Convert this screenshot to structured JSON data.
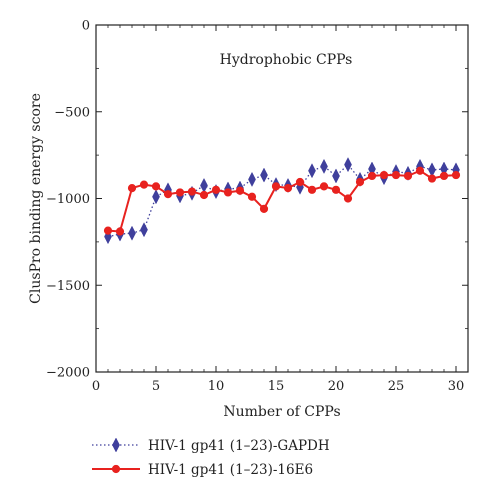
{
  "chart_data": {
    "type": "line",
    "title": "",
    "annotation": "Hydrophobic CPPs",
    "xlabel": "Number of CPPs",
    "ylabel": "ClusPro binding energy score",
    "xlim": [
      0,
      31
    ],
    "ylim": [
      -2000,
      0
    ],
    "xticks": [
      0,
      5,
      10,
      15,
      20,
      25,
      30
    ],
    "yticks": [
      0,
      -500,
      -1000,
      -1500,
      -2000
    ],
    "xtick_labels": [
      "0",
      "5",
      "10",
      "15",
      "20",
      "25",
      "30"
    ],
    "ytick_labels": [
      "0",
      "−500",
      "−1000",
      "−1500",
      "−2000"
    ],
    "grid": false,
    "legend_position": "bottom-left, below plot",
    "series": [
      {
        "name": "HIV-1 gp41 (1–23)-GAPDH",
        "color": "#3f3f9c",
        "line_style": "dotted",
        "marker": "diamond",
        "x": [
          1,
          2,
          3,
          4,
          5,
          6,
          7,
          8,
          9,
          10,
          11,
          12,
          13,
          14,
          15,
          16,
          17,
          18,
          19,
          20,
          21,
          22,
          23,
          24,
          25,
          26,
          27,
          28,
          29,
          30
        ],
        "y": [
          -1220,
          -1205,
          -1200,
          -1180,
          -990,
          -950,
          -985,
          -970,
          -925,
          -960,
          -945,
          -940,
          -890,
          -865,
          -920,
          -925,
          -935,
          -840,
          -815,
          -870,
          -805,
          -890,
          -830,
          -880,
          -845,
          -855,
          -815,
          -835,
          -830,
          -835
        ]
      },
      {
        "name": "HIV-1 gp41 (1–23)-16E6",
        "color": "#e8221f",
        "line_style": "solid",
        "marker": "circle",
        "x": [
          1,
          2,
          3,
          4,
          5,
          6,
          7,
          8,
          9,
          10,
          11,
          12,
          13,
          14,
          15,
          16,
          17,
          18,
          19,
          20,
          21,
          22,
          23,
          24,
          25,
          26,
          27,
          28,
          29,
          30
        ],
        "y": [
          -1185,
          -1190,
          -940,
          -920,
          -930,
          -975,
          -965,
          -960,
          -980,
          -950,
          -965,
          -955,
          -990,
          -1060,
          -930,
          -940,
          -905,
          -950,
          -930,
          -950,
          -1000,
          -905,
          -870,
          -865,
          -865,
          -870,
          -840,
          -885,
          -870,
          -865
        ]
      }
    ]
  }
}
